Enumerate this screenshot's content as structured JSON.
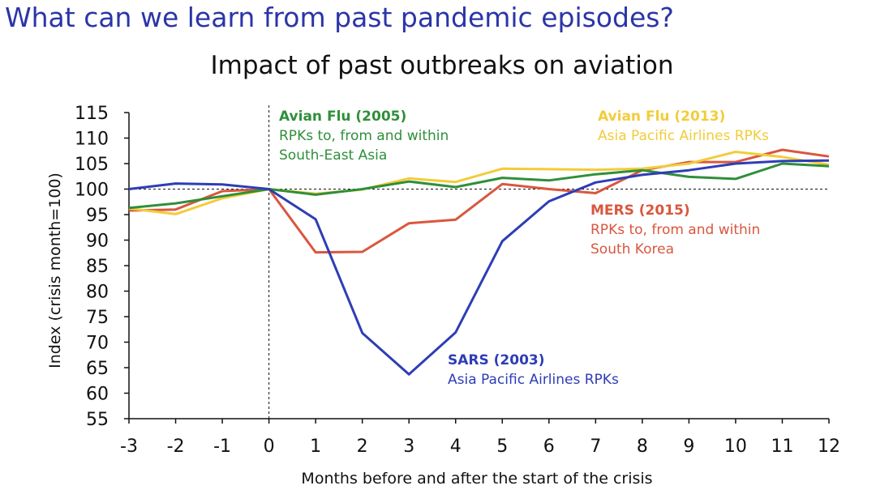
{
  "slide": {
    "title": "What can we learn from past pandemic episodes?"
  },
  "colors": {
    "sars": "#2e3db5",
    "avian2005": "#2f8f3a",
    "avian2013": "#f2cc3a",
    "mers": "#d9573e",
    "title": "#2b35a8"
  },
  "chart_data": {
    "type": "line",
    "title": "Impact of past outbreaks on aviation",
    "xlabel": "Months before and after the start of the crisis",
    "ylabel": "Index (crisis month=100)",
    "x": [
      -3,
      -2,
      -1,
      0,
      1,
      2,
      3,
      4,
      5,
      6,
      7,
      8,
      9,
      10,
      11,
      12
    ],
    "x_tick_labels": [
      "-3",
      "-2",
      "-1",
      "0",
      "1",
      "2",
      "3",
      "4",
      "5",
      "6",
      "7",
      "8",
      "9",
      "10",
      "11",
      "12"
    ],
    "xlim": [
      -3,
      12
    ],
    "ylim": [
      55,
      115
    ],
    "y_ticks": [
      55,
      60,
      65,
      70,
      75,
      80,
      85,
      90,
      95,
      100,
      105,
      110,
      115
    ],
    "reference_line_y": 100,
    "reference_line_x": 0,
    "series": [
      {
        "key": "sars",
        "values": [
          100.0,
          101.1,
          100.9,
          100.0,
          94.1,
          71.8,
          63.7,
          71.9,
          89.8,
          97.6,
          101.3,
          102.8,
          103.7,
          105.0,
          105.5,
          105.6
        ]
      },
      {
        "key": "avian2005",
        "values": [
          96.3,
          97.2,
          98.6,
          100.0,
          98.9,
          100.0,
          101.5,
          100.4,
          102.2,
          101.7,
          102.9,
          103.7,
          102.4,
          102.0,
          105.0,
          104.5
        ]
      },
      {
        "key": "avian2013",
        "values": [
          96.2,
          95.1,
          98.2,
          100.0,
          99.1,
          99.9,
          102.1,
          101.4,
          104.0,
          103.9,
          103.8,
          104.0,
          105.0,
          107.3,
          106.3,
          104.8
        ]
      },
      {
        "key": "mers",
        "values": [
          95.8,
          96.0,
          99.6,
          100.0,
          87.6,
          87.7,
          93.3,
          94.0,
          101.0,
          100.0,
          99.2,
          103.7,
          105.3,
          105.3,
          107.7,
          106.4
        ]
      }
    ],
    "annotations": [
      {
        "key": "avian2005",
        "title": "Avian Flu (2005)",
        "lines": [
          "RPKs to, from and within",
          "South-East Asia"
        ]
      },
      {
        "key": "avian2013",
        "title": "Avian Flu (2013)",
        "lines": [
          "Asia Pacific Airlines RPKs"
        ]
      },
      {
        "key": "mers",
        "title": "MERS (2015)",
        "lines": [
          "RPKs to, from and within",
          "South Korea"
        ]
      },
      {
        "key": "sars",
        "title": "SARS (2003)",
        "lines": [
          "Asia Pacific Airlines RPKs"
        ]
      }
    ],
    "grid": false,
    "legend": "none"
  }
}
